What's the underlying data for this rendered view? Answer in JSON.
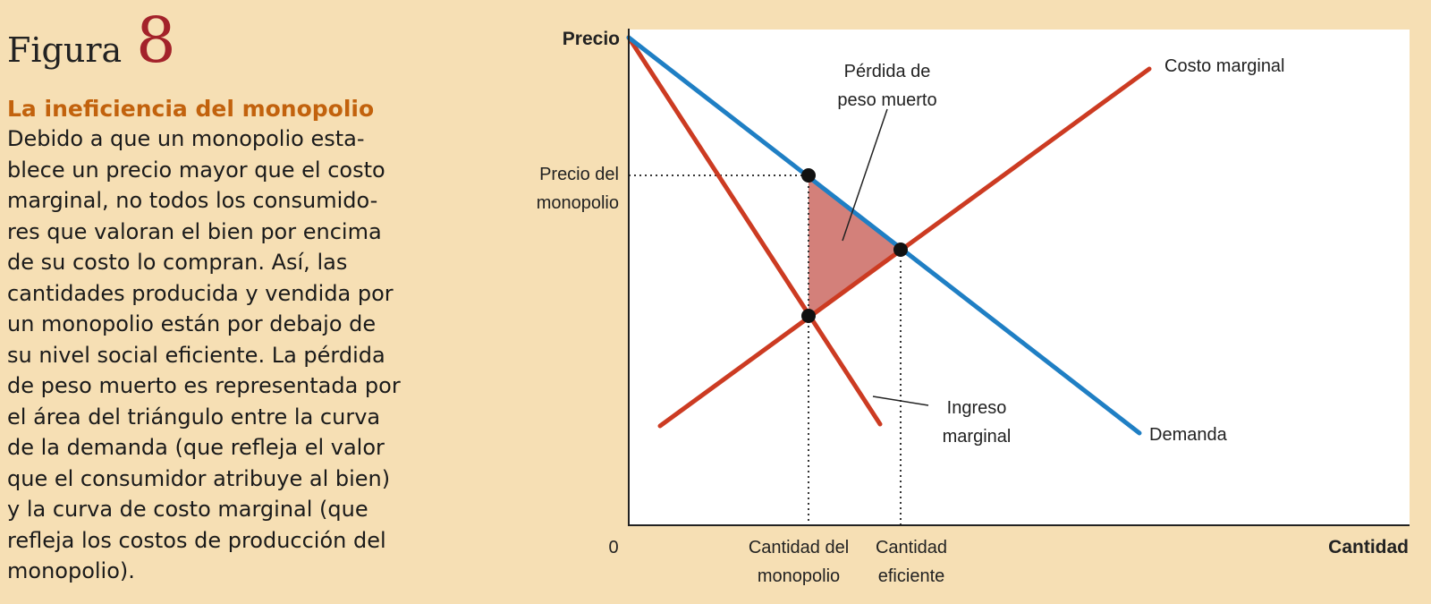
{
  "figure": {
    "label": "Figura",
    "number": "8",
    "title": "La ineficiencia del monopolio",
    "body_lines": [
      "Debido a que un monopolio esta-",
      "blece un precio mayor que el costo",
      "marginal, no todos los consumido-",
      "res que valoran el bien por encima",
      "de su costo lo compran. Así, las",
      "cantidades producida y vendida por",
      "un monopolio están por debajo de",
      "su nivel social eficiente. La pérdida",
      "de peso muerto es representada por",
      "el área del triángulo entre la curva",
      "de la demanda (que refleja el valor",
      "que el consumidor atribuye al bien)",
      "y la curva de costo marginal (que",
      "refleja los costos de producción del",
      "monopolio)."
    ]
  },
  "diagram": {
    "y_axis_label": "Precio",
    "x_axis_label": "Cantidad",
    "origin_label": "0",
    "monopoly_price_label": [
      "Precio del",
      "monopolio"
    ],
    "monopoly_quantity_label": [
      "Cantidad del",
      "monopolio"
    ],
    "efficient_quantity_label": [
      "Cantidad",
      "eficiente"
    ],
    "deadweight_loss_label": [
      "Pérdida de",
      "peso muerto"
    ],
    "marginal_cost_label": "Costo marginal",
    "marginal_revenue_label": [
      "Ingreso",
      "marginal"
    ],
    "demand_label": "Demanda",
    "colors": {
      "demand": "#1f7fc4",
      "marginal_cost": "#cc3b22",
      "marginal_revenue": "#cc3b22",
      "deadweight_fill": "#d3807a",
      "plot_background": "#ffffff",
      "page_background": "#f6dfb4"
    }
  }
}
